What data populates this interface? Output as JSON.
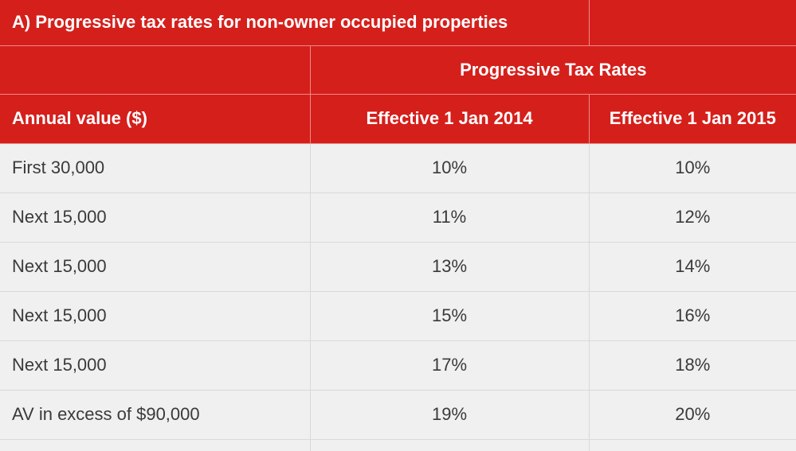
{
  "table": {
    "title": "A) Progressive tax rates for non-owner occupied properties",
    "group_header": "Progressive Tax Rates",
    "columns": [
      "Annual value ($)",
      "Effective 1 Jan 2014",
      "Effective 1 Jan 2015"
    ],
    "rows": [
      [
        "First 30,000",
        "10%",
        "10%"
      ],
      [
        "Next 15,000",
        "11%",
        "12%"
      ],
      [
        "Next 15,000",
        "13%",
        "14%"
      ],
      [
        "Next 15,000",
        "15%",
        "16%"
      ],
      [
        "Next 15,000",
        "17%",
        "18%"
      ],
      [
        "AV in excess of $90,000",
        "19%",
        "20%"
      ]
    ]
  },
  "colors": {
    "header_red": "#d51f1b",
    "row_background": "#f0f0f0",
    "body_text": "#3a3a3a"
  }
}
